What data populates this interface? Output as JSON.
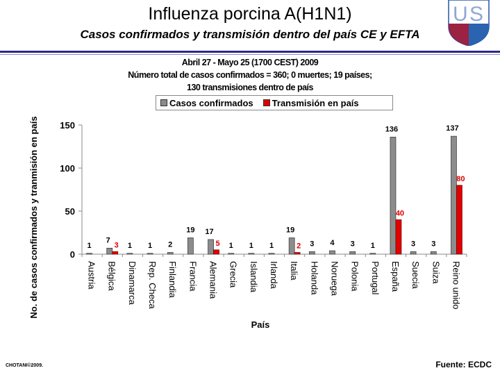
{
  "slide": {
    "title": "Influenza porcina A(H1N1)",
    "subtitle": "Casos confirmados y transmisión dentro del país CE y EFTA",
    "header_line1": "Abril 27 - Mayo 25 (1700 CEST) 2009",
    "header_line2": "Número total de casos confirmados = 360; 0 muertes; 19 países;",
    "header_line3": "130 transmisiones dentro de país",
    "footer_left": "CHOTANI©2009.",
    "footer_right": "Fuente: ECDC",
    "logo_text": "USU"
  },
  "chart_data": {
    "type": "bar",
    "xlabel": "País",
    "ylabel": "No. de casos confirmados y tranmisión en país",
    "ylim": [
      0,
      150
    ],
    "yticks": [
      0,
      50,
      100,
      150
    ],
    "legend_position": "top",
    "grid": false,
    "categories": [
      "Austria",
      "Bélgica",
      "Dinamarca",
      "Rep. Checa",
      "Finlandia",
      "Francia",
      "Alemania",
      "Grecia",
      "Islandia",
      "Irlanda",
      "Italia",
      "Holanda",
      "Noruega",
      "Polonia",
      "Portugal",
      "España",
      "Suecia",
      "Suiza",
      "Reino unido"
    ],
    "series": [
      {
        "name": "Casos confirmados",
        "color": "#8c8c8c",
        "values": [
          1,
          7,
          1,
          1,
          2,
          19,
          17,
          1,
          1,
          1,
          19,
          3,
          4,
          3,
          1,
          136,
          3,
          3,
          137
        ]
      },
      {
        "name": "Transmisión en país",
        "color": "#e00000",
        "values": [
          0,
          3,
          0,
          0,
          0,
          0,
          5,
          0,
          0,
          0,
          2,
          0,
          0,
          0,
          0,
          40,
          0,
          0,
          80
        ]
      }
    ]
  }
}
